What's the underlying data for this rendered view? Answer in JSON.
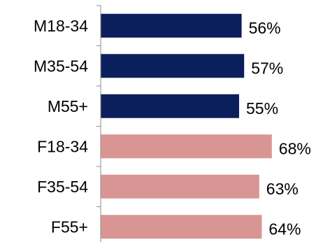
{
  "chart_data": {
    "type": "bar",
    "orientation": "horizontal",
    "categories": [
      "M18-34",
      "M35-54",
      "M55+",
      "F18-34",
      "F35-54",
      "F55+"
    ],
    "values": [
      56,
      57,
      55,
      68,
      63,
      64
    ],
    "value_labels": [
      "56%",
      "57%",
      "55%",
      "68%",
      "63%",
      "64%"
    ],
    "bar_colors": [
      "#0b1f5c",
      "#0b1f5c",
      "#0b1f5c",
      "#d99594",
      "#d99594",
      "#d99594"
    ],
    "axis_color": "#8c8c8c",
    "xlim": [
      0,
      100
    ],
    "grid": false,
    "legend": "none"
  }
}
